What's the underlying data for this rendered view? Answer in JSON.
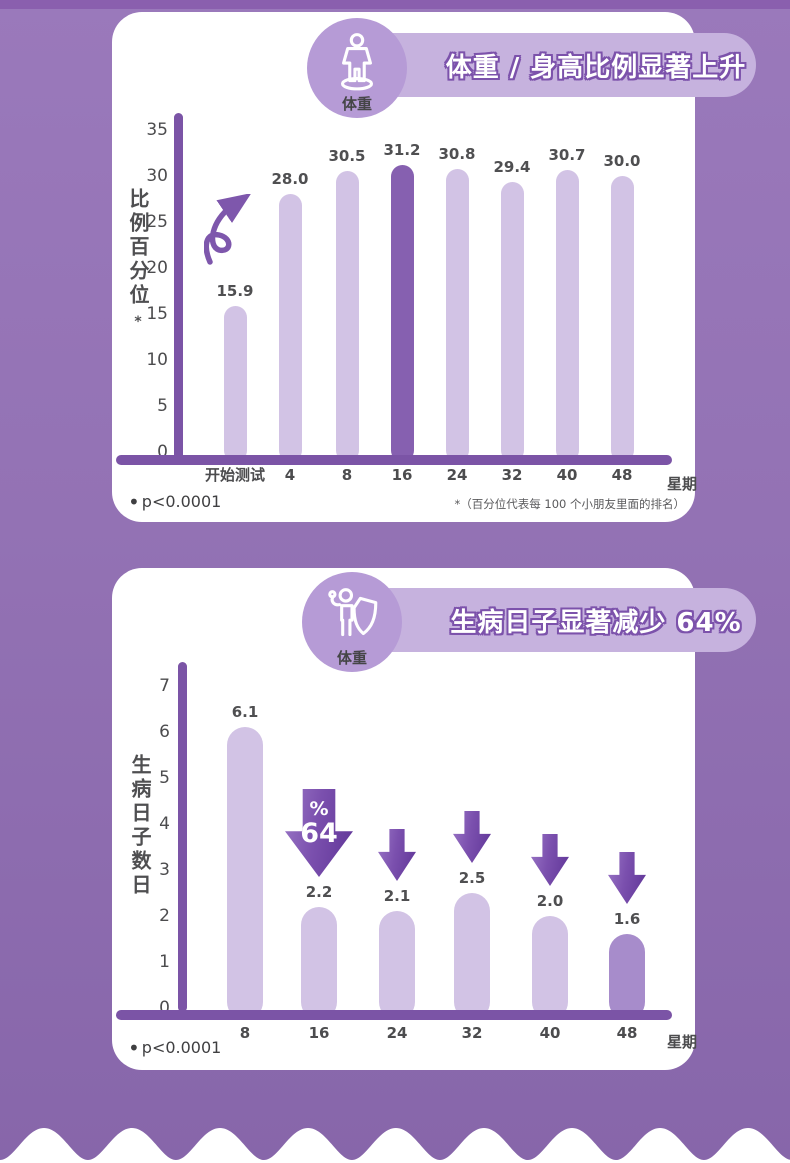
{
  "page": {
    "background_top_color": "#9a79bb",
    "background_bottom_color": "#8766aa",
    "accent_purple": "#7b54a6",
    "banner_fill": "#c6b2de",
    "badge_fill": "#b69bd6"
  },
  "cards": [
    {
      "badge": {
        "icon": "person-scale-icon",
        "label": "体重"
      },
      "title": "体重 / 身高比例显著上升",
      "ylabel": "比例百分位",
      "ylabel_note": "*",
      "xunit_label": "星期",
      "footnote_bullet": "•",
      "footnote_left": "p<0.0001",
      "footnote_right": "*（百分位代表每 100 个小朋友里面的排名）"
    },
    {
      "badge": {
        "icon": "shield-person-icon",
        "label": "体重"
      },
      "title": "生病日子显著减少 64%",
      "ylabel": "生病日子数日",
      "xunit_label": "星期",
      "footnote_bullet": "•",
      "footnote_left": "p<0.0001",
      "arrow": {
        "pct": "%",
        "value": "64"
      }
    }
  ],
  "chart_data": [
    {
      "type": "bar",
      "title": "体重 / 身高比例显著上升",
      "xlabel": "星期",
      "ylabel": "比例百分位*",
      "categories": [
        "开始测试",
        "4",
        "8",
        "16",
        "24",
        "32",
        "40",
        "48"
      ],
      "values": [
        15.9,
        28.0,
        30.5,
        31.2,
        30.8,
        29.4,
        30.7,
        30.0
      ],
      "value_labels": [
        "15.9",
        "28.0",
        "30.5",
        "31.2",
        "30.8",
        "29.4",
        "30.7",
        "30.0"
      ],
      "yticks": [
        0,
        5,
        10,
        15,
        20,
        25,
        30,
        35
      ],
      "ylim": [
        0,
        37
      ],
      "grid": false,
      "bar_color": "#d2c3e5",
      "highlight_index": 3,
      "highlight_color": "#8660b0",
      "annotation": "p<0.0001"
    },
    {
      "type": "bar",
      "title": "生病日子显著减少 64%",
      "xlabel": "星期",
      "ylabel": "生病日子数日",
      "categories": [
        "8",
        "16",
        "24",
        "32",
        "40",
        "48"
      ],
      "values": [
        6.1,
        2.2,
        2.1,
        2.5,
        2.0,
        1.6
      ],
      "value_labels": [
        "6.1",
        "2.2",
        "2.1",
        "2.5",
        "2.0",
        "1.6"
      ],
      "yticks": [
        0,
        1,
        2,
        3,
        4,
        5,
        6,
        7
      ],
      "ylim": [
        0,
        7.5
      ],
      "grid": false,
      "bar_color": "#d2c3e5",
      "highlight_index": 5,
      "highlight_color": "#a78ccb",
      "arrow_indices": [
        1,
        2,
        3,
        4,
        5
      ],
      "big_arrow_index": 1,
      "big_arrow_text": "%64",
      "annotation": "p<0.0001"
    }
  ]
}
